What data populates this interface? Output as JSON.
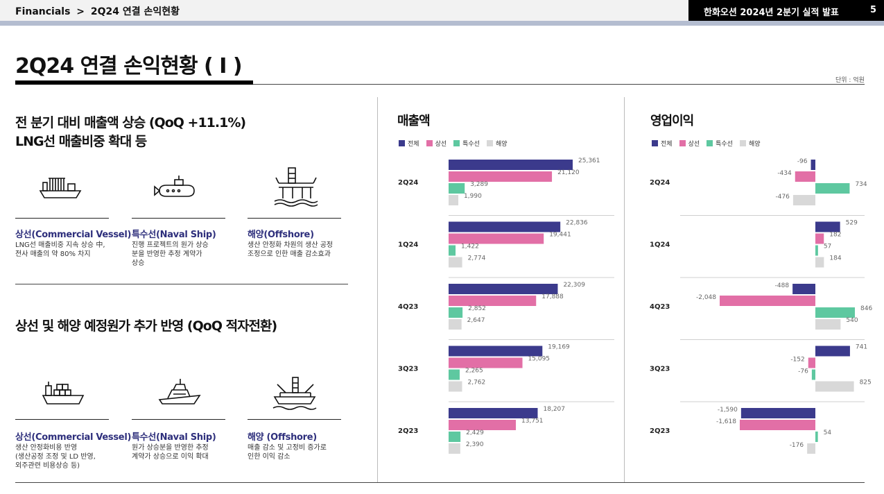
{
  "header": {
    "breadcrumb_root": "Financials",
    "breadcrumb_sep": ">",
    "breadcrumb_page": "2Q24 연결 손익현황",
    "report_title": "한화오션 2024년 2분기 실적 발표",
    "page_number": "5"
  },
  "title": "2Q24 연결 손익현황 ( I )",
  "unit": "단위 : 억원",
  "sales_section": {
    "heading_line1": "전 분기 대비 매출액 상승 (QoQ +11.1%)",
    "heading_line2": "LNG선 매출비중 확대 등",
    "segments": [
      {
        "icon": "lng-carrier-icon",
        "name": "상선(Commercial Vessel)",
        "desc": [
          "LNG선 매출비중 지속 상승 中,",
          "전사 매출의 약 80% 차지"
        ]
      },
      {
        "icon": "submarine-icon",
        "name": "특수선(Naval Ship)",
        "desc": [
          "진행 프로젝트의 원가 상승",
          "분을 반영한 추정 계약가",
          "상승"
        ]
      },
      {
        "icon": "offshore-platform-icon",
        "name": "해양(Offshore)",
        "desc": [
          "생산 안정화 차원의 생산 공정",
          "조정으로 인한 매출 감소효과"
        ]
      }
    ]
  },
  "profit_section": {
    "heading": "상선 및 해양 예정원가 추가 반영 (QoQ 적자전환)",
    "segments": [
      {
        "icon": "container-ship-icon",
        "name": "상선(Commercial Vessel)",
        "desc": [
          "생산 안정화비용 반영",
          "(생산공정 조정 및 LD 반영,",
          "외주관련 비용상승 등)"
        ]
      },
      {
        "icon": "naval-ship-icon",
        "name": "특수선(Naval Ship)",
        "desc": [
          "원가 상승분을 반영한 추정",
          "계약가 상승으로 이익 확대"
        ]
      },
      {
        "icon": "fpso-icon",
        "name": "해양 (Offshore)",
        "desc": [
          "매출 감소 및 고정비 증가로",
          "인한 이익 감소"
        ]
      }
    ]
  },
  "colors": {
    "total": "#3b3a8c",
    "commercial": "#e26fa6",
    "naval": "#5ec8a0",
    "offshore": "#d8d8d8"
  },
  "chart_data": [
    {
      "type": "bar",
      "title": "매출액",
      "orientation": "horizontal",
      "categories": [
        "2Q24",
        "1Q24",
        "4Q23",
        "3Q23",
        "2Q23"
      ],
      "series": [
        {
          "name": "전체",
          "values": [
            25361,
            22836,
            22309,
            19169,
            18207
          ]
        },
        {
          "name": "상선",
          "values": [
            21120,
            19441,
            17888,
            15095,
            13751
          ]
        },
        {
          "name": "특수선",
          "values": [
            3289,
            1422,
            2852,
            2265,
            2429
          ]
        },
        {
          "name": "해양",
          "values": [
            1990,
            2774,
            2647,
            2762,
            2390
          ]
        }
      ],
      "value_labels": {
        "전체": [
          "25,361",
          "22,836",
          "22,309",
          "19,169",
          "18,207"
        ],
        "상선": [
          "21,120",
          "19,441",
          "17,888",
          "15,095",
          "13,751"
        ],
        "특수선": [
          "3,289",
          "1,422",
          "2,852",
          "2,265",
          "2,429"
        ],
        "해양": [
          "1,990",
          "2,774",
          "2,647",
          "2,762",
          "2,390"
        ]
      },
      "xlim": [
        0,
        25361
      ],
      "legend_position": "top-left",
      "grid": false
    },
    {
      "type": "bar",
      "title": "영업이익",
      "orientation": "horizontal",
      "categories": [
        "2Q24",
        "1Q24",
        "4Q23",
        "3Q23",
        "2Q23"
      ],
      "series": [
        {
          "name": "전체",
          "values": [
            -96,
            529,
            -488,
            741,
            -1590
          ]
        },
        {
          "name": "상선",
          "values": [
            -434,
            182,
            -2048,
            -152,
            -1618
          ]
        },
        {
          "name": "특수선",
          "values": [
            734,
            57,
            846,
            -76,
            54
          ]
        },
        {
          "name": "해양",
          "values": [
            -476,
            184,
            540,
            825,
            -176
          ]
        }
      ],
      "value_labels": {
        "전체": [
          "-96",
          "529",
          "-488",
          "741",
          "-1,590"
        ],
        "상선": [
          "-434",
          "182",
          "-2,048",
          "-152",
          "-1,618"
        ],
        "특수선": [
          "734",
          "57",
          "846",
          "-76",
          "54"
        ],
        "해양": [
          "-476",
          "184",
          "540",
          "825",
          "-176"
        ]
      },
      "xlim": [
        -2048,
        846
      ],
      "legend_position": "top-left",
      "grid": false
    }
  ]
}
